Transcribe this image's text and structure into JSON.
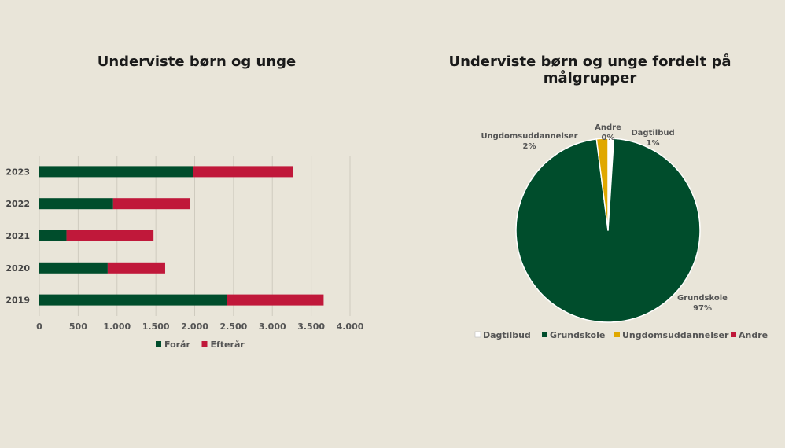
{
  "chart_data": [
    {
      "type": "bar",
      "orientation": "horizontal",
      "stacked": true,
      "title": "Underviste børn og unge",
      "categories": [
        "2023",
        "2022",
        "2021",
        "2020",
        "2019"
      ],
      "series": [
        {
          "name": "Forår",
          "color": "#004d2c",
          "values": [
            1980,
            950,
            350,
            880,
            2420
          ]
        },
        {
          "name": "Efterår",
          "color": "#c0183a",
          "values": [
            1290,
            990,
            1120,
            740,
            1240
          ]
        }
      ],
      "xlim": [
        0,
        4000
      ],
      "xticks": [
        "0",
        "500",
        "1.000",
        "1.500",
        "2.000",
        "2.500",
        "3.000",
        "3.500",
        "4.000"
      ],
      "grid": true,
      "legend_position": "bottom"
    },
    {
      "type": "pie",
      "title": "Underviste børn og unge fordelt på målgrupper",
      "slices": [
        {
          "name": "Dagtilbud",
          "value": 1,
          "label": "1%",
          "color": "#ffffff"
        },
        {
          "name": "Grundskole",
          "value": 97,
          "label": "97%",
          "color": "#004d2c"
        },
        {
          "name": "Ungdomsuddannelser",
          "value": 2,
          "label": "2%",
          "color": "#e0a800"
        },
        {
          "name": "Andre",
          "value": 0,
          "label": "0%",
          "color": "#c0183a"
        }
      ],
      "legend_position": "bottom"
    }
  ]
}
